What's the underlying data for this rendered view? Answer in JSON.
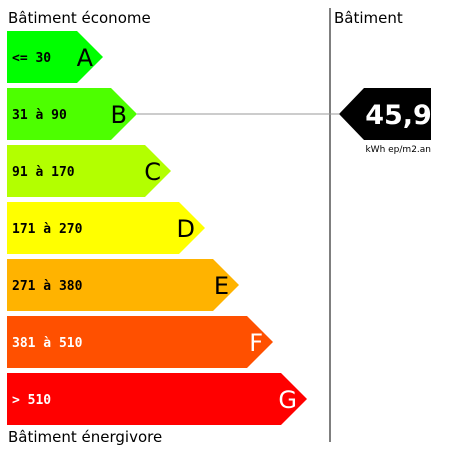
{
  "header": {
    "left_title": "Bâtiment économe",
    "right_title": "Bâtiment",
    "bottom_title": "Bâtiment énergivore"
  },
  "chart_data": {
    "type": "bar",
    "title": "",
    "categories": [
      "A",
      "B",
      "C",
      "D",
      "E",
      "F",
      "G"
    ],
    "range_labels": [
      "<= 30",
      "31 à 90",
      "91 à 170",
      "171 à 270",
      "271 à 380",
      "381 à 510",
      "> 510"
    ],
    "colors": [
      "#00ff00",
      "#4dff00",
      "#b3ff00",
      "#ffff00",
      "#ffb300",
      "#ff5000",
      "#ff0000"
    ],
    "indicator": {
      "value": "45,9",
      "unit": "kWh ep/m2.an",
      "class": "B",
      "color": "#000000"
    }
  }
}
